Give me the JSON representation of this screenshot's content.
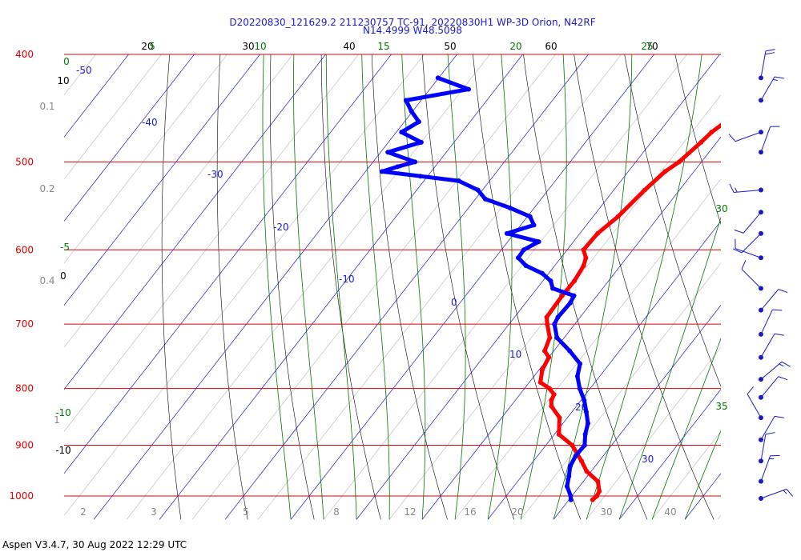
{
  "header": {
    "title_line1": "D20220830_121629.2 211230757 TC-91, 20220830H1 WP-3D Orion, N42RF",
    "title_line2": "N14.4999 W48.5098"
  },
  "footer": {
    "text": "Aspen V3.4.7, 30 Aug 2022  12:29 UTC"
  },
  "colors": {
    "isobar": "#dd0000",
    "isotherm": "#1a1acc",
    "dry_adiabat": "#000000",
    "moist_adiabat": "#007700",
    "mixing_ratio": "#888888",
    "temperature": "#ff0000",
    "dewpoint": "#0000ff",
    "wind": "#1a1acc"
  },
  "chart_data": {
    "type": "line",
    "title": "D20220830_121629.2 211230757 TC-91, 20220830H1 WP-3D Orion, N42RF N14.4999 W48.5098",
    "plot_kind": "skew-T log-P",
    "pressure_axis": {
      "scale": "log",
      "ylim": [
        1010,
        400
      ],
      "ticks": [
        400,
        500,
        600,
        700,
        800,
        900,
        1000
      ]
    },
    "isotherm_labels": [
      -50,
      -40,
      -30,
      -20,
      -10,
      0,
      10,
      20,
      30
    ],
    "dry_adiabat_labels": [
      20,
      30,
      40,
      50,
      60,
      70
    ],
    "moist_adiabat_labels_top": [
      5,
      10,
      15,
      20,
      25
    ],
    "moist_adiabat_labels_right": [
      30,
      35
    ],
    "left_labels": [
      {
        "text": "0",
        "color": "green"
      },
      {
        "text": "10",
        "color": "black"
      },
      {
        "text": "0.1",
        "color": "gray"
      },
      {
        "text": "0.2",
        "color": "gray"
      },
      {
        "text": "-5",
        "color": "green"
      },
      {
        "text": "0.4",
        "color": "gray"
      },
      {
        "text": "0",
        "color": "black"
      },
      {
        "text": "-10",
        "color": "green"
      },
      {
        "text": "1",
        "color": "gray"
      },
      {
        "text": "-10",
        "color": "black"
      }
    ],
    "mixing_ratio_labels": [
      "2",
      "3",
      "5",
      "8",
      "12",
      "16",
      "20",
      "30",
      "40"
    ],
    "grid": true,
    "series": [
      {
        "color": "red",
        "points": [
          [
            400,
            1.6
          ],
          [
            410,
            0.8
          ],
          [
            430,
            0.4
          ],
          [
            450,
            -0.2
          ],
          [
            470,
            -2.0
          ],
          [
            480,
            -2.4
          ],
          [
            500,
            -3.4
          ],
          [
            510,
            -4.4
          ],
          [
            530,
            -5.3
          ],
          [
            560,
            -6.2
          ],
          [
            580,
            -7.3
          ],
          [
            600,
            -7.5
          ],
          [
            610,
            -6.2
          ],
          [
            620,
            -5.6
          ],
          [
            640,
            -5.2
          ],
          [
            660,
            -5.3
          ],
          [
            690,
            -5.1
          ],
          [
            700,
            -4.2
          ],
          [
            720,
            -2.2
          ],
          [
            740,
            -1.4
          ],
          [
            750,
            0.0
          ],
          [
            770,
            0.5
          ],
          [
            790,
            1.7
          ],
          [
            800,
            3.8
          ],
          [
            810,
            5.2
          ],
          [
            820,
            5.5
          ],
          [
            830,
            6.2
          ],
          [
            850,
            8.8
          ],
          [
            880,
            10.7
          ],
          [
            900,
            14.0
          ],
          [
            930,
            17.3
          ],
          [
            950,
            19.3
          ],
          [
            970,
            22.2
          ],
          [
            990,
            23.6
          ],
          [
            1000,
            23.8
          ],
          [
            1008,
            23.6
          ]
        ]
      },
      {
        "color": "blue",
        "points": [
          [
            420,
            -50.1
          ],
          [
            430,
            -44.1
          ],
          [
            440,
            -52.3
          ],
          [
            450,
            -50.2
          ],
          [
            460,
            -47.8
          ],
          [
            470,
            -49.2
          ],
          [
            480,
            -45.0
          ],
          [
            490,
            -48.9
          ],
          [
            500,
            -43.6
          ],
          [
            505,
            -45.7
          ],
          [
            510,
            -47.5
          ],
          [
            515,
            -41.1
          ],
          [
            520,
            -34.7
          ],
          [
            530,
            -30.7
          ],
          [
            540,
            -28.5
          ],
          [
            550,
            -23.7
          ],
          [
            560,
            -19.6
          ],
          [
            570,
            -18.0
          ],
          [
            580,
            -21.1
          ],
          [
            590,
            -15.3
          ],
          [
            600,
            -16.6
          ],
          [
            610,
            -16.5
          ],
          [
            620,
            -14.4
          ],
          [
            630,
            -11.0
          ],
          [
            640,
            -8.8
          ],
          [
            650,
            -7.6
          ],
          [
            660,
            -3.5
          ],
          [
            670,
            -3.2
          ],
          [
            690,
            -3.4
          ],
          [
            700,
            -3.1
          ],
          [
            720,
            -1.1
          ],
          [
            740,
            2.4
          ],
          [
            760,
            5.5
          ],
          [
            780,
            6.6
          ],
          [
            800,
            8.4
          ],
          [
            820,
            10.5
          ],
          [
            840,
            12.2
          ],
          [
            860,
            13.8
          ],
          [
            880,
            14.7
          ],
          [
            900,
            15.9
          ],
          [
            920,
            15.8
          ],
          [
            940,
            16.2
          ],
          [
            960,
            17.2
          ],
          [
            980,
            18.1
          ],
          [
            1000,
            19.8
          ],
          [
            1008,
            20.3
          ]
        ]
      }
    ],
    "wind_barbs": [
      {
        "p": 420,
        "dir": 10,
        "speed": 20
      },
      {
        "p": 440,
        "dir": 30,
        "speed": 15
      },
      {
        "p": 470,
        "dir": 250,
        "speed": 10
      },
      {
        "p": 490,
        "dir": 20,
        "speed": 10
      },
      {
        "p": 530,
        "dir": 265,
        "speed": 15
      },
      {
        "p": 555,
        "dir": 220,
        "speed": 10
      },
      {
        "p": 580,
        "dir": 225,
        "speed": 10
      },
      {
        "p": 610,
        "dir": 290,
        "speed": 10
      },
      {
        "p": 650,
        "dir": 315,
        "speed": 10
      },
      {
        "p": 680,
        "dir": 40,
        "speed": 10
      },
      {
        "p": 715,
        "dir": 25,
        "speed": 10
      },
      {
        "p": 750,
        "dir": 30,
        "speed": 10
      },
      {
        "p": 785,
        "dir": 50,
        "speed": 15
      },
      {
        "p": 815,
        "dir": 40,
        "speed": 10
      },
      {
        "p": 850,
        "dir": 330,
        "speed": 10
      },
      {
        "p": 890,
        "dir": 30,
        "speed": 10
      },
      {
        "p": 930,
        "dir": 10,
        "speed": 10
      },
      {
        "p": 970,
        "dir": 20,
        "speed": 15
      },
      {
        "p": 1005,
        "dir": 70,
        "speed": 15
      }
    ]
  }
}
